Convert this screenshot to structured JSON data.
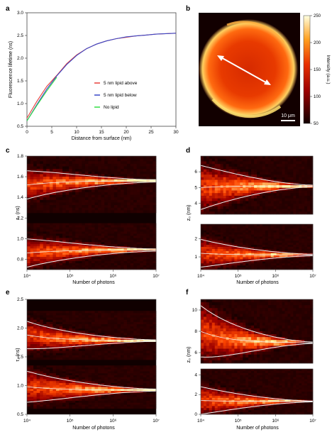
{
  "panel_letters": {
    "a": "a",
    "b": "b",
    "c": "c",
    "d": "d",
    "e": "e",
    "f": "f"
  },
  "colors": {
    "red": "#e8403a",
    "blue": "#3848c8",
    "green": "#33dd44",
    "curve": "#f2f2f2",
    "heat_bg": "#100000"
  },
  "chart_data": [
    {
      "panel": "a",
      "type": "line",
      "xlabel": "Distance from surface (nm)",
      "ylabel": "Fluorescence lifetime (ns)",
      "xlim": [
        0,
        30
      ],
      "ylim": [
        0.5,
        3.0
      ],
      "xticks": [
        "0",
        "5",
        "10",
        "15",
        "20",
        "25",
        "30"
      ],
      "yticks": [
        "0.5",
        "1.0",
        "1.5",
        "2.0",
        "2.5",
        "3.0"
      ],
      "legend_placement": "center-right",
      "series": [
        {
          "name": "5 nm lipid above",
          "color": "#e8403a",
          "x": [
            0,
            2,
            4,
            6,
            8,
            10,
            12,
            14,
            16,
            18,
            20,
            22,
            24,
            26,
            28,
            30
          ],
          "y": [
            0.68,
            1.05,
            1.38,
            1.62,
            1.88,
            2.07,
            2.21,
            2.31,
            2.38,
            2.43,
            2.46,
            2.49,
            2.51,
            2.53,
            2.54,
            2.55
          ]
        },
        {
          "name": "5 nm lipid below",
          "color": "#3848c8",
          "x": [
            0,
            2,
            4,
            6,
            8,
            10,
            12,
            14,
            16,
            18,
            20,
            22,
            24,
            26,
            28,
            30
          ],
          "y": [
            0.62,
            0.98,
            1.32,
            1.61,
            1.86,
            2.06,
            2.21,
            2.31,
            2.38,
            2.43,
            2.47,
            2.49,
            2.51,
            2.53,
            2.54,
            2.55
          ]
        },
        {
          "name": "No lipid",
          "color": "#33dd44",
          "x": [
            0,
            2,
            4,
            6
          ],
          "y": [
            0.62,
            0.96,
            1.28,
            1.58
          ]
        }
      ]
    },
    {
      "panel": "b",
      "type": "heatmap",
      "colorbar_label": "Intensity (a.u.)",
      "colorbar_ticks": [
        "250",
        "200",
        "150",
        "100",
        "50"
      ],
      "colorbar_range": [
        50,
        250
      ],
      "scale_bar": "10 μm"
    },
    {
      "panel": "c",
      "type": "heatmap",
      "xlabel": "Number of photons",
      "ylabel": "τ₂ (ns)",
      "ylim": [
        0.7,
        1.8
      ],
      "xticks": [
        "10⁴",
        "10⁵",
        "10⁶",
        "10⁷"
      ],
      "yticks": [
        "0.8",
        "1.0",
        "1.2",
        "1.4",
        "1.6",
        "1.8"
      ],
      "x_log_range": [
        4,
        7
      ],
      "converged_values": [
        1.56,
        0.89
      ]
    },
    {
      "panel": "d",
      "type": "heatmap",
      "xlabel": "Number of photons",
      "ylabel": "z₀ (nm)",
      "xticks": [
        "10⁴",
        "10⁵",
        "10⁶",
        "10⁷"
      ],
      "upper_yticks": [
        "4",
        "5",
        "6"
      ],
      "upper_ylim": [
        3.3,
        7.0
      ],
      "lower_yticks": [
        "1",
        "2"
      ],
      "lower_ylim": [
        0.3,
        2.8
      ],
      "converged_values": [
        5.1,
        1.1
      ]
    },
    {
      "panel": "e",
      "type": "heatmap",
      "xlabel": "Number of photons",
      "ylabel": "τ₁ (ns)",
      "ylim": [
        0.5,
        2.5
      ],
      "xticks": [
        "10⁴",
        "10⁵",
        "10⁶",
        "10⁷"
      ],
      "yticks": [
        "0.5",
        "1.0",
        "1.5",
        "2.0",
        "2.5"
      ],
      "converged_values": [
        1.78,
        0.92
      ]
    },
    {
      "panel": "f",
      "type": "heatmap",
      "xlabel": "Number of photons",
      "ylabel": "z₀ (nm)",
      "xticks": [
        "10⁴",
        "10⁵",
        "10⁶",
        "10⁷"
      ],
      "upper_yticks": [
        "6",
        "8",
        "10"
      ],
      "upper_ylim": [
        5.0,
        11.0
      ],
      "lower_yticks": [
        "0",
        "2",
        "4"
      ],
      "lower_ylim": [
        0,
        4.6
      ],
      "converged_values": [
        6.9,
        1.3
      ]
    }
  ]
}
